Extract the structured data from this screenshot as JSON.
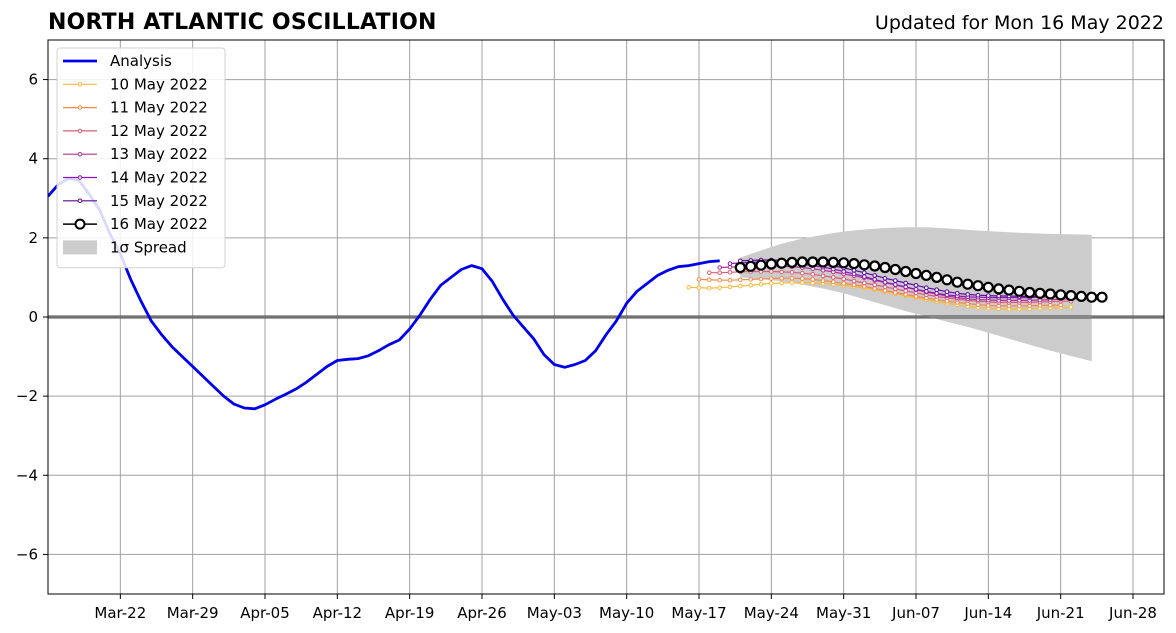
{
  "header": {
    "title": "NORTH ATLANTIC OSCILLATION",
    "updated": "Updated for Mon 16 May 2022"
  },
  "chart_data": {
    "type": "line",
    "title": "NORTH ATLANTIC OSCILLATION",
    "subtitle": "Updated for Mon 16 May 2022",
    "x_start_date": "2022-03-15",
    "xlim": [
      "2022-03-15",
      "2022-07-01"
    ],
    "ylim": [
      -7,
      7
    ],
    "x_ticks": [
      {
        "label": "Mar-22",
        "date": "2022-03-22"
      },
      {
        "label": "Mar-29",
        "date": "2022-03-29"
      },
      {
        "label": "Apr-05",
        "date": "2022-04-05"
      },
      {
        "label": "Apr-12",
        "date": "2022-04-12"
      },
      {
        "label": "Apr-19",
        "date": "2022-04-19"
      },
      {
        "label": "Apr-26",
        "date": "2022-04-26"
      },
      {
        "label": "May-03",
        "date": "2022-05-03"
      },
      {
        "label": "May-10",
        "date": "2022-05-10"
      },
      {
        "label": "May-17",
        "date": "2022-05-17"
      },
      {
        "label": "May-24",
        "date": "2022-05-24"
      },
      {
        "label": "May-31",
        "date": "2022-05-31"
      },
      {
        "label": "Jun-07",
        "date": "2022-06-07"
      },
      {
        "label": "Jun-14",
        "date": "2022-06-14"
      },
      {
        "label": "Jun-21",
        "date": "2022-06-21"
      },
      {
        "label": "Jun-28",
        "date": "2022-06-28"
      }
    ],
    "y_ticks": [
      {
        "label": "6",
        "value": 6
      },
      {
        "label": "4",
        "value": 4
      },
      {
        "label": "2",
        "value": 2
      },
      {
        "label": "0",
        "value": 0
      },
      {
        "label": "−2",
        "value": -2
      },
      {
        "label": "−4",
        "value": -4
      },
      {
        "label": "−6",
        "value": -6
      }
    ],
    "grid": true,
    "zero_line": true,
    "legend": {
      "position": "top-left",
      "entries": [
        {
          "label": "Analysis",
          "color": "#0000e8",
          "style": "thick-line"
        },
        {
          "label": "10 May 2022",
          "color": "#f9b93a",
          "style": "line-marker"
        },
        {
          "label": "11 May 2022",
          "color": "#f08a4b",
          "style": "line-marker"
        },
        {
          "label": "12 May 2022",
          "color": "#de5c76",
          "style": "line-marker"
        },
        {
          "label": "13 May 2022",
          "color": "#b23294",
          "style": "line-marker"
        },
        {
          "label": "14 May 2022",
          "color": "#8a16b6",
          "style": "line-marker"
        },
        {
          "label": "15 May 2022",
          "color": "#5a0a9c",
          "style": "line-marker"
        },
        {
          "label": "16 May 2022",
          "color": "#000000",
          "style": "open-circle"
        },
        {
          "label": "1σ Spread",
          "color": "#cccccc",
          "style": "patch"
        }
      ]
    },
    "analysis": {
      "name": "Analysis",
      "color": "#0000e8",
      "points": [
        [
          "2022-03-15",
          3.05
        ],
        [
          "2022-03-16",
          3.35
        ],
        [
          "2022-03-17",
          3.5
        ],
        [
          "2022-03-18",
          3.45
        ],
        [
          "2022-03-19",
          3.1
        ],
        [
          "2022-03-20",
          2.7
        ],
        [
          "2022-03-21",
          2.1
        ],
        [
          "2022-03-22",
          1.6
        ],
        [
          "2022-03-23",
          0.95
        ],
        [
          "2022-03-24",
          0.4
        ],
        [
          "2022-03-25",
          -0.1
        ],
        [
          "2022-03-26",
          -0.45
        ],
        [
          "2022-03-27",
          -0.75
        ],
        [
          "2022-03-28",
          -1.0
        ],
        [
          "2022-03-29",
          -1.25
        ],
        [
          "2022-03-30",
          -1.5
        ],
        [
          "2022-03-31",
          -1.75
        ],
        [
          "2022-04-01",
          -2.0
        ],
        [
          "2022-04-02",
          -2.2
        ],
        [
          "2022-04-03",
          -2.3
        ],
        [
          "2022-04-04",
          -2.32
        ],
        [
          "2022-04-05",
          -2.22
        ],
        [
          "2022-04-06",
          -2.08
        ],
        [
          "2022-04-07",
          -1.95
        ],
        [
          "2022-04-08",
          -1.82
        ],
        [
          "2022-04-09",
          -1.65
        ],
        [
          "2022-04-10",
          -1.45
        ],
        [
          "2022-04-11",
          -1.25
        ],
        [
          "2022-04-12",
          -1.1
        ],
        [
          "2022-04-13",
          -1.07
        ],
        [
          "2022-04-14",
          -1.05
        ],
        [
          "2022-04-15",
          -0.98
        ],
        [
          "2022-04-16",
          -0.85
        ],
        [
          "2022-04-17",
          -0.7
        ],
        [
          "2022-04-18",
          -0.58
        ],
        [
          "2022-04-19",
          -0.3
        ],
        [
          "2022-04-20",
          0.05
        ],
        [
          "2022-04-21",
          0.45
        ],
        [
          "2022-04-22",
          0.8
        ],
        [
          "2022-04-23",
          1.0
        ],
        [
          "2022-04-24",
          1.2
        ],
        [
          "2022-04-25",
          1.3
        ],
        [
          "2022-04-26",
          1.22
        ],
        [
          "2022-04-27",
          0.9
        ],
        [
          "2022-04-28",
          0.45
        ],
        [
          "2022-04-29",
          0.05
        ],
        [
          "2022-04-30",
          -0.25
        ],
        [
          "2022-05-01",
          -0.55
        ],
        [
          "2022-05-02",
          -0.95
        ],
        [
          "2022-05-03",
          -1.2
        ],
        [
          "2022-05-04",
          -1.27
        ],
        [
          "2022-05-05",
          -1.2
        ],
        [
          "2022-05-06",
          -1.1
        ],
        [
          "2022-05-07",
          -0.85
        ],
        [
          "2022-05-08",
          -0.45
        ],
        [
          "2022-05-09",
          -0.1
        ],
        [
          "2022-05-10",
          0.35
        ],
        [
          "2022-05-11",
          0.65
        ],
        [
          "2022-05-12",
          0.85
        ],
        [
          "2022-05-13",
          1.05
        ],
        [
          "2022-05-14",
          1.18
        ],
        [
          "2022-05-15",
          1.27
        ],
        [
          "2022-05-16",
          1.3
        ],
        [
          "2022-05-17",
          1.35
        ],
        [
          "2022-05-18",
          1.4
        ],
        [
          "2022-05-19",
          1.42
        ]
      ]
    },
    "forecasts": [
      {
        "name": "10 May 2022",
        "color": "#f9b93a",
        "start": "2022-05-16",
        "values": [
          0.75,
          0.74,
          0.73,
          0.74,
          0.76,
          0.78,
          0.8,
          0.83,
          0.85,
          0.86,
          0.87,
          0.87,
          0.86,
          0.85,
          0.83,
          0.8,
          0.77,
          0.73,
          0.69,
          0.64,
          0.59,
          0.54,
          0.49,
          0.44,
          0.39,
          0.35,
          0.31,
          0.27,
          0.24,
          0.22,
          0.21,
          0.2,
          0.2,
          0.21,
          0.22,
          0.23,
          0.24,
          0.25
        ]
      },
      {
        "name": "11 May 2022",
        "color": "#f08a4b",
        "start": "2022-05-17",
        "values": [
          0.95,
          0.94,
          0.93,
          0.93,
          0.94,
          0.95,
          0.96,
          0.97,
          0.98,
          0.98,
          0.97,
          0.95,
          0.92,
          0.89,
          0.85,
          0.81,
          0.77,
          0.72,
          0.67,
          0.62,
          0.57,
          0.52,
          0.48,
          0.44,
          0.4,
          0.37,
          0.34,
          0.31,
          0.29,
          0.28,
          0.28,
          0.28,
          0.28,
          0.29,
          0.3,
          0.3
        ]
      },
      {
        "name": "12 May 2022",
        "color": "#de5c76",
        "start": "2022-05-18",
        "values": [
          1.12,
          1.12,
          1.13,
          1.14,
          1.15,
          1.15,
          1.15,
          1.14,
          1.13,
          1.11,
          1.08,
          1.04,
          1.0,
          0.96,
          0.91,
          0.86,
          0.81,
          0.76,
          0.71,
          0.66,
          0.61,
          0.56,
          0.52,
          0.48,
          0.45,
          0.42,
          0.4,
          0.38,
          0.37,
          0.37,
          0.37,
          0.37,
          0.38,
          0.39,
          0.4,
          0.4
        ]
      },
      {
        "name": "13 May 2022",
        "color": "#b23294",
        "start": "2022-05-19",
        "values": [
          1.25,
          1.26,
          1.27,
          1.28,
          1.29,
          1.29,
          1.28,
          1.27,
          1.25,
          1.22,
          1.18,
          1.14,
          1.09,
          1.04,
          0.99,
          0.93,
          0.87,
          0.81,
          0.75,
          0.69,
          0.63,
          0.58,
          0.53,
          0.49,
          0.46,
          0.44,
          0.43,
          0.42,
          0.42,
          0.42,
          0.42,
          0.43,
          0.44,
          0.45,
          0.46,
          0.46
        ]
      },
      {
        "name": "14 May 2022",
        "color": "#8a16b6",
        "start": "2022-05-20",
        "values": [
          1.35,
          1.37,
          1.38,
          1.39,
          1.39,
          1.38,
          1.36,
          1.33,
          1.3,
          1.26,
          1.21,
          1.15,
          1.09,
          1.02,
          0.95,
          0.88,
          0.82,
          0.76,
          0.7,
          0.65,
          0.6,
          0.56,
          0.53,
          0.51,
          0.5,
          0.49,
          0.49,
          0.49,
          0.49,
          0.49,
          0.5,
          0.51,
          0.52,
          0.53,
          0.54,
          0.55
        ]
      },
      {
        "name": "15 May 2022",
        "color": "#5a0a9c",
        "start": "2022-05-21",
        "values": [
          1.42,
          1.43,
          1.44,
          1.44,
          1.43,
          1.42,
          1.4,
          1.37,
          1.33,
          1.29,
          1.24,
          1.18,
          1.12,
          1.05,
          0.98,
          0.92,
          0.86,
          0.8,
          0.74,
          0.69,
          0.64,
          0.6,
          0.57,
          0.55,
          0.54,
          0.53,
          0.53,
          0.52,
          0.52,
          0.52,
          0.52,
          0.53,
          0.53,
          0.53,
          0.53,
          0.53
        ]
      }
    ],
    "latest": {
      "name": "16 May 2022",
      "color": "#000000",
      "start": "2022-05-21",
      "values": [
        1.25,
        1.28,
        1.31,
        1.34,
        1.36,
        1.38,
        1.39,
        1.39,
        1.39,
        1.38,
        1.37,
        1.35,
        1.32,
        1.29,
        1.25,
        1.2,
        1.15,
        1.1,
        1.05,
        1.0,
        0.94,
        0.88,
        0.83,
        0.79,
        0.75,
        0.71,
        0.68,
        0.65,
        0.62,
        0.6,
        0.58,
        0.56,
        0.54,
        0.52,
        0.5,
        0.5
      ]
    },
    "spread": {
      "name": "1σ Spread",
      "color": "#cccccc",
      "dates": [
        "2022-05-21",
        "2022-05-23",
        "2022-05-25",
        "2022-05-27",
        "2022-05-29",
        "2022-05-31",
        "2022-06-02",
        "2022-06-04",
        "2022-06-06",
        "2022-06-08",
        "2022-06-10",
        "2022-06-12",
        "2022-06-14",
        "2022-06-16",
        "2022-06-18",
        "2022-06-20",
        "2022-06-24"
      ],
      "upper": [
        1.5,
        1.68,
        1.85,
        1.98,
        2.08,
        2.16,
        2.21,
        2.25,
        2.27,
        2.27,
        2.24,
        2.2,
        2.17,
        2.14,
        2.12,
        2.1,
        2.08
      ],
      "lower": [
        1.0,
        0.96,
        0.9,
        0.82,
        0.72,
        0.6,
        0.45,
        0.3,
        0.15,
        0.02,
        -0.12,
        -0.25,
        -0.4,
        -0.55,
        -0.7,
        -0.85,
        -1.12
      ]
    }
  }
}
